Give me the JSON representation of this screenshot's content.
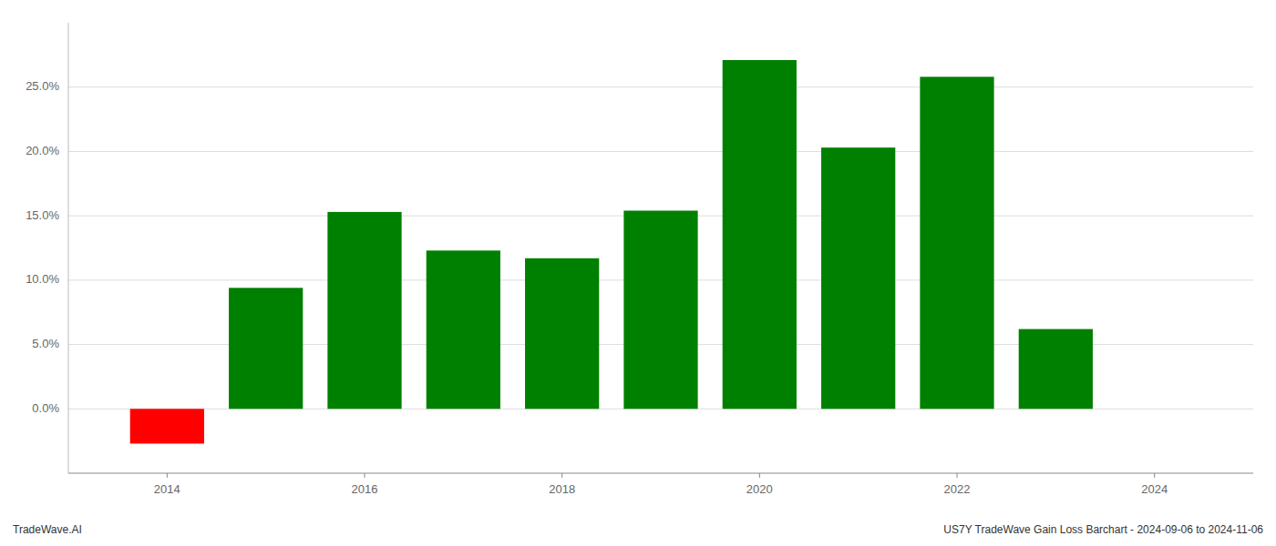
{
  "chart_data": {
    "type": "bar",
    "x": [
      2014,
      2015,
      2016,
      2017,
      2018,
      2019,
      2020,
      2021,
      2022,
      2023
    ],
    "values": [
      -0.027,
      0.094,
      0.153,
      0.123,
      0.117,
      0.154,
      0.271,
      0.203,
      0.258,
      0.062
    ],
    "colors": [
      "#ff0000",
      "#008000",
      "#008000",
      "#008000",
      "#008000",
      "#008000",
      "#008000",
      "#008000",
      "#008000",
      "#008000"
    ],
    "xlim": [
      2013.0,
      2025.0
    ],
    "xticks": [
      2014,
      2016,
      2018,
      2020,
      2022,
      2024
    ],
    "ylim": [
      -0.05,
      0.3
    ],
    "yticks": [
      {
        "value": 0,
        "label": "0.0%"
      },
      {
        "value": 0.05,
        "label": "5.0%"
      },
      {
        "value": 0.1,
        "label": "10.0%"
      },
      {
        "value": 0.15,
        "label": "15.0%"
      },
      {
        "value": 0.2,
        "label": "20.0%"
      },
      {
        "value": 0.25,
        "label": "25.0%"
      }
    ],
    "grid": true,
    "annotations": [
      "TradeWave.AI",
      "US7Y TradeWave Gain Loss Barchart - 2024-09-06 to 2024-11-06"
    ]
  }
}
